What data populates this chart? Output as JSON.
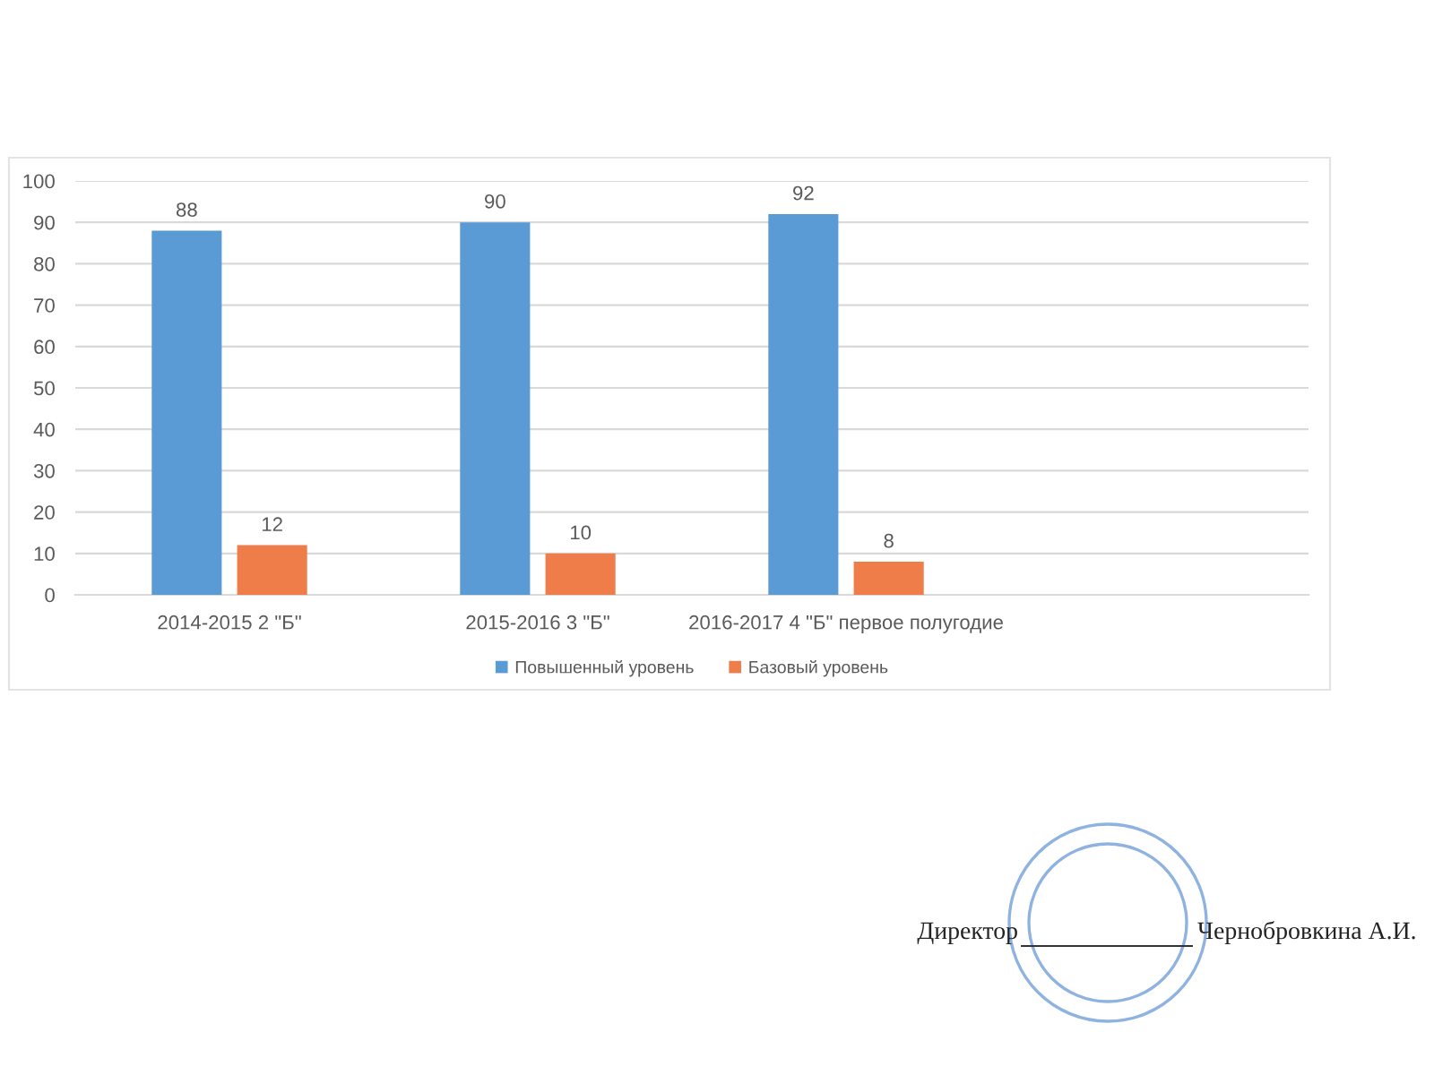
{
  "chart_data": {
    "type": "bar",
    "categories": [
      "2014-2015 2 \"Б\"",
      "2015-2016 3 \"Б\"",
      "2016-2017 4 \"Б\" первое полугодие",
      null
    ],
    "series": [
      {
        "name": "Повышенный уровень",
        "color": "#5b9bd5",
        "values": [
          88,
          90,
          92,
          null
        ]
      },
      {
        "name": "Базовый уровень",
        "color": "#ee7d4a",
        "values": [
          12,
          10,
          8,
          null
        ]
      }
    ],
    "ylim": [
      0,
      100
    ],
    "yticks": [
      0,
      10,
      20,
      30,
      40,
      50,
      60,
      70,
      80,
      90,
      100
    ],
    "grid": "y",
    "legend": "bottom",
    "data_labels": true,
    "annotations": [
      "Директор",
      "Чернобровкина А.И."
    ]
  }
}
